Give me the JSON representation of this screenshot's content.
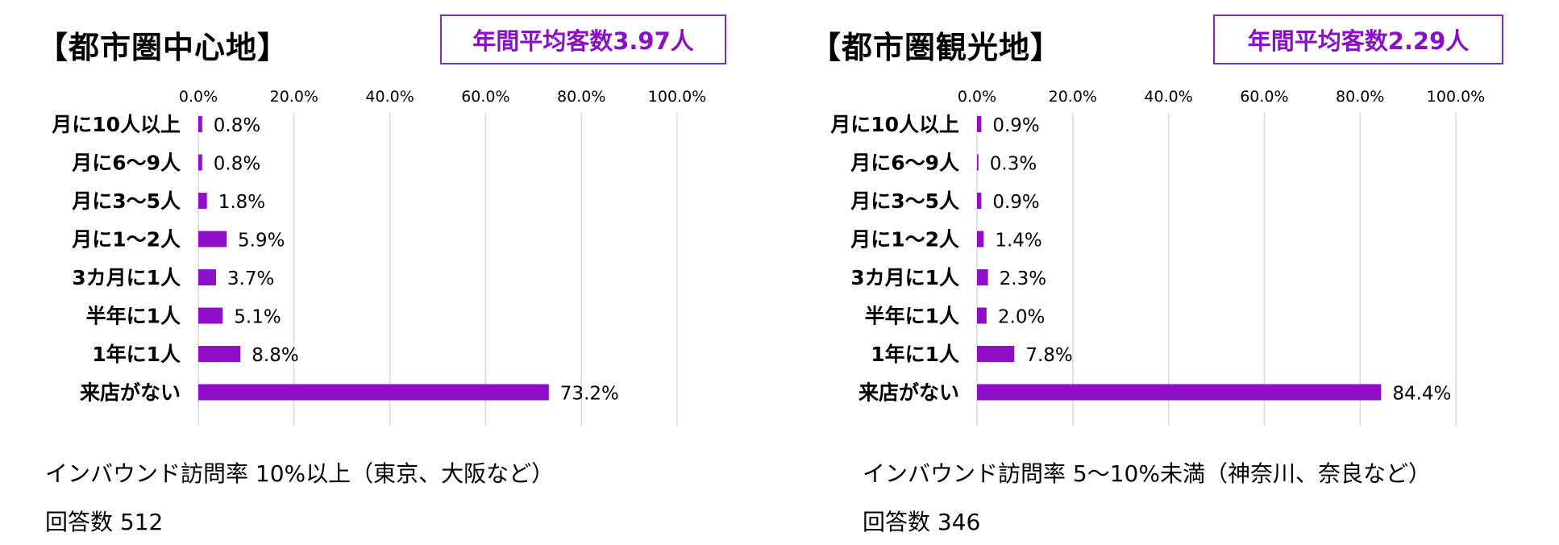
{
  "colors": {
    "bar": "#8f0ec8",
    "grid": "#d9d9d9",
    "box_border": "#7b2fbe",
    "box_text": "#8a10c8"
  },
  "left": {
    "title": "【都市圏中心地】",
    "avg_label": "年間平均客数3.97人",
    "note_line1": "インバウンド訪問率 10%以上（東京、大阪など）",
    "note_line2": "回答数 512"
  },
  "right": {
    "title": "【都市圏観光地】",
    "avg_label": "年間平均客数2.29人",
    "note_line1": "インバウンド訪問率 5～10%未満（神奈川、奈良など）",
    "note_line2": "回答数 346"
  },
  "chart_data": [
    {
      "type": "bar",
      "orientation": "horizontal",
      "categories": [
        "月に10人以上",
        "月に6～9人",
        "月に3～5人",
        "月に1～2人",
        "3カ月に1人",
        "半年に1人",
        "1年に1人",
        "来店がない"
      ],
      "values": [
        0.8,
        0.8,
        1.8,
        5.9,
        3.7,
        5.1,
        8.8,
        73.2
      ],
      "value_labels": [
        "0.8%",
        "0.8%",
        "1.8%",
        "5.9%",
        "3.7%",
        "5.1%",
        "8.8%",
        "73.2%"
      ],
      "xticks": [
        "0.0%",
        "20.0%",
        "40.0%",
        "60.0%",
        "80.0%",
        "100.0%"
      ],
      "xlim": [
        0,
        100
      ],
      "grid": true
    },
    {
      "type": "bar",
      "orientation": "horizontal",
      "categories": [
        "月に10人以上",
        "月に6～9人",
        "月に3～5人",
        "月に1～2人",
        "3カ月に1人",
        "半年に1人",
        "1年に1人",
        "来店がない"
      ],
      "values": [
        0.9,
        0.3,
        0.9,
        1.4,
        2.3,
        2.0,
        7.8,
        84.4
      ],
      "value_labels": [
        "0.9%",
        "0.3%",
        "0.9%",
        "1.4%",
        "2.3%",
        "2.0%",
        "7.8%",
        "84.4%"
      ],
      "xticks": [
        "0.0%",
        "20.0%",
        "40.0%",
        "60.0%",
        "80.0%",
        "100.0%"
      ],
      "xlim": [
        0,
        100
      ],
      "grid": true
    }
  ]
}
